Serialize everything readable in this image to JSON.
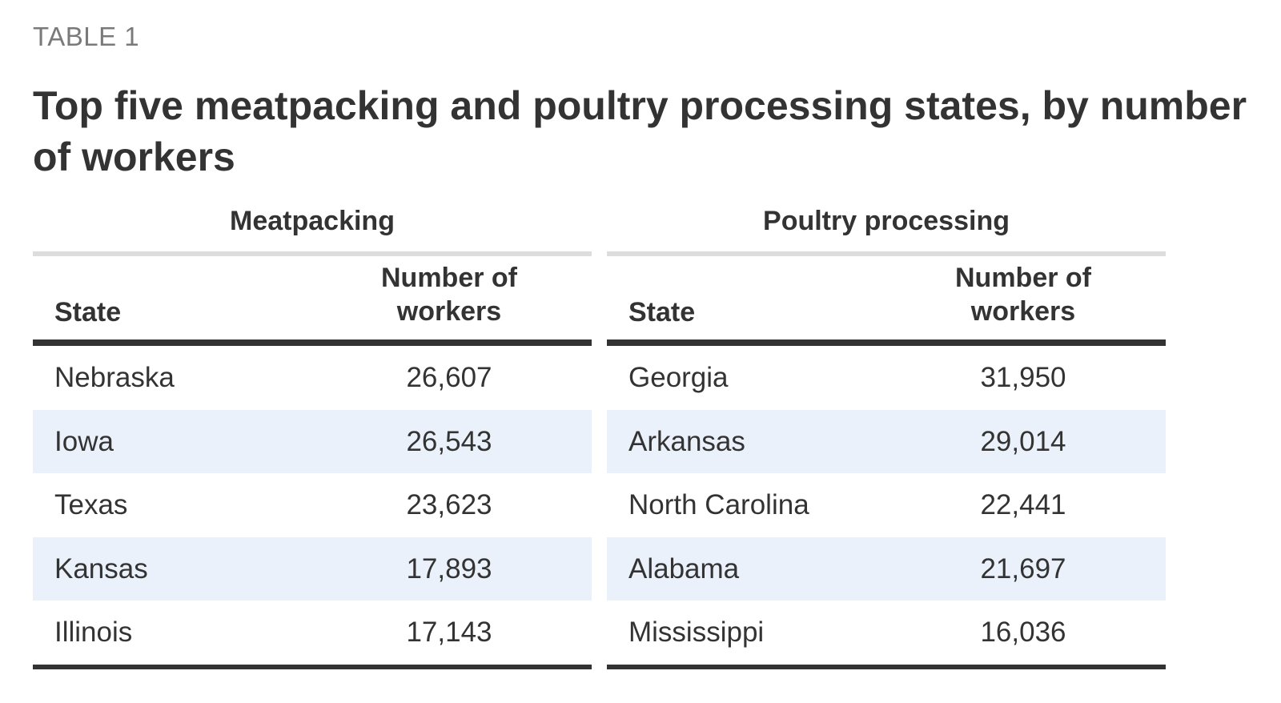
{
  "label": "TABLE 1",
  "title": "Top five meatpacking and poultry processing states, by number of workers",
  "chart_data": {
    "type": "table",
    "title": "Top five meatpacking and poultry processing states, by number of workers",
    "tables": [
      {
        "group": "Meatpacking",
        "columns": [
          "State",
          "Number of workers"
        ],
        "rows": [
          {
            "state": "Nebraska",
            "workers": "26,607"
          },
          {
            "state": "Iowa",
            "workers": "26,543"
          },
          {
            "state": "Texas",
            "workers": "23,623"
          },
          {
            "state": "Kansas",
            "workers": "17,893"
          },
          {
            "state": "Illinois",
            "workers": "17,143"
          }
        ]
      },
      {
        "group": "Poultry processing",
        "columns": [
          "State",
          "Number of workers"
        ],
        "rows": [
          {
            "state": "Georgia",
            "workers": "31,950"
          },
          {
            "state": "Arkansas",
            "workers": "29,014"
          },
          {
            "state": "North Carolina",
            "workers": "22,441"
          },
          {
            "state": "Alabama",
            "workers": "21,697"
          },
          {
            "state": "Mississippi",
            "workers": "16,036"
          }
        ]
      }
    ]
  }
}
